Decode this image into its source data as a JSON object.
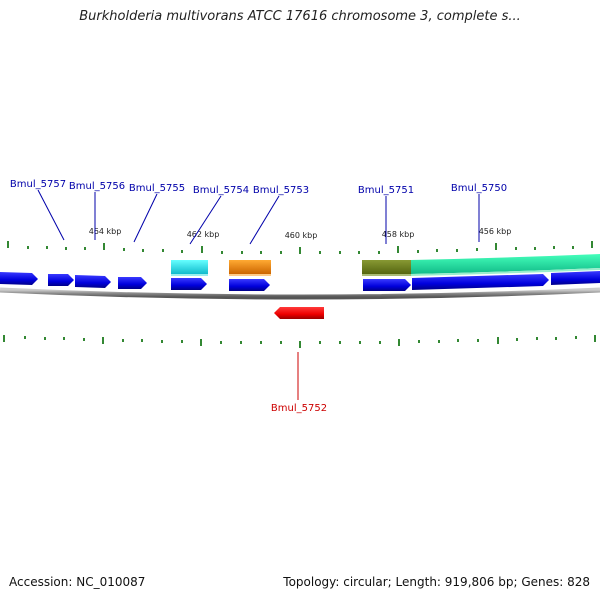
{
  "title": "Burkholderia multivorans ATCC 17616 chromosome 3, complete s...",
  "footer": {
    "accession": "Accession: NC_010087",
    "summary": "Topology: circular; Length: 919,806 bp; Genes: 828"
  },
  "scale_labels": [
    "464 kbp",
    "462 kbp",
    "460 kbp",
    "458 kbp",
    "456 kbp"
  ],
  "gene_labels": [
    {
      "name": "Bmul_5757",
      "color": "#0000aa"
    },
    {
      "name": "Bmul_5756",
      "color": "#0000aa"
    },
    {
      "name": "Bmul_5755",
      "color": "#0000aa"
    },
    {
      "name": "Bmul_5754",
      "color": "#0000aa"
    },
    {
      "name": "Bmul_5753",
      "color": "#0000aa"
    },
    {
      "name": "Bmul_5751",
      "color": "#0000aa"
    },
    {
      "name": "Bmul_5750",
      "color": "#0000aa"
    },
    {
      "name": "Bmul_5752",
      "color": "#cc0000"
    }
  ],
  "colors": {
    "cds": "#0000ee",
    "cds_reverse": "#ee0000",
    "feature_cyan": "#22dddd",
    "feature_orange": "#ee8800",
    "feature_olive": "#667722",
    "feature_green": "#22dd99",
    "backbone": "#888888",
    "tick": "#338833"
  }
}
